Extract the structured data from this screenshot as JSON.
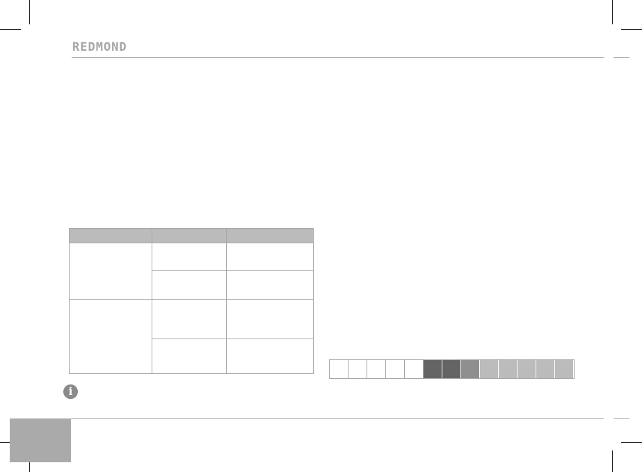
{
  "header": {
    "logo": "REDMOND"
  },
  "table": {
    "rows": 2,
    "subrows_per_row": 2,
    "header_color": "#bbbbbb"
  },
  "info_icon": "info-icon",
  "color_strip": {
    "cells": [
      "#ffffff",
      "#ffffff",
      "#ffffff",
      "#ffffff",
      "#ffffff",
      "#646464",
      "#646464",
      "#8f8f8f",
      "#bbbbbb",
      "#bbbbbb",
      "#bbbbbb",
      "#bbbbbb",
      "#bbbbbb"
    ]
  },
  "page_tab_color": "#aaaaaa"
}
